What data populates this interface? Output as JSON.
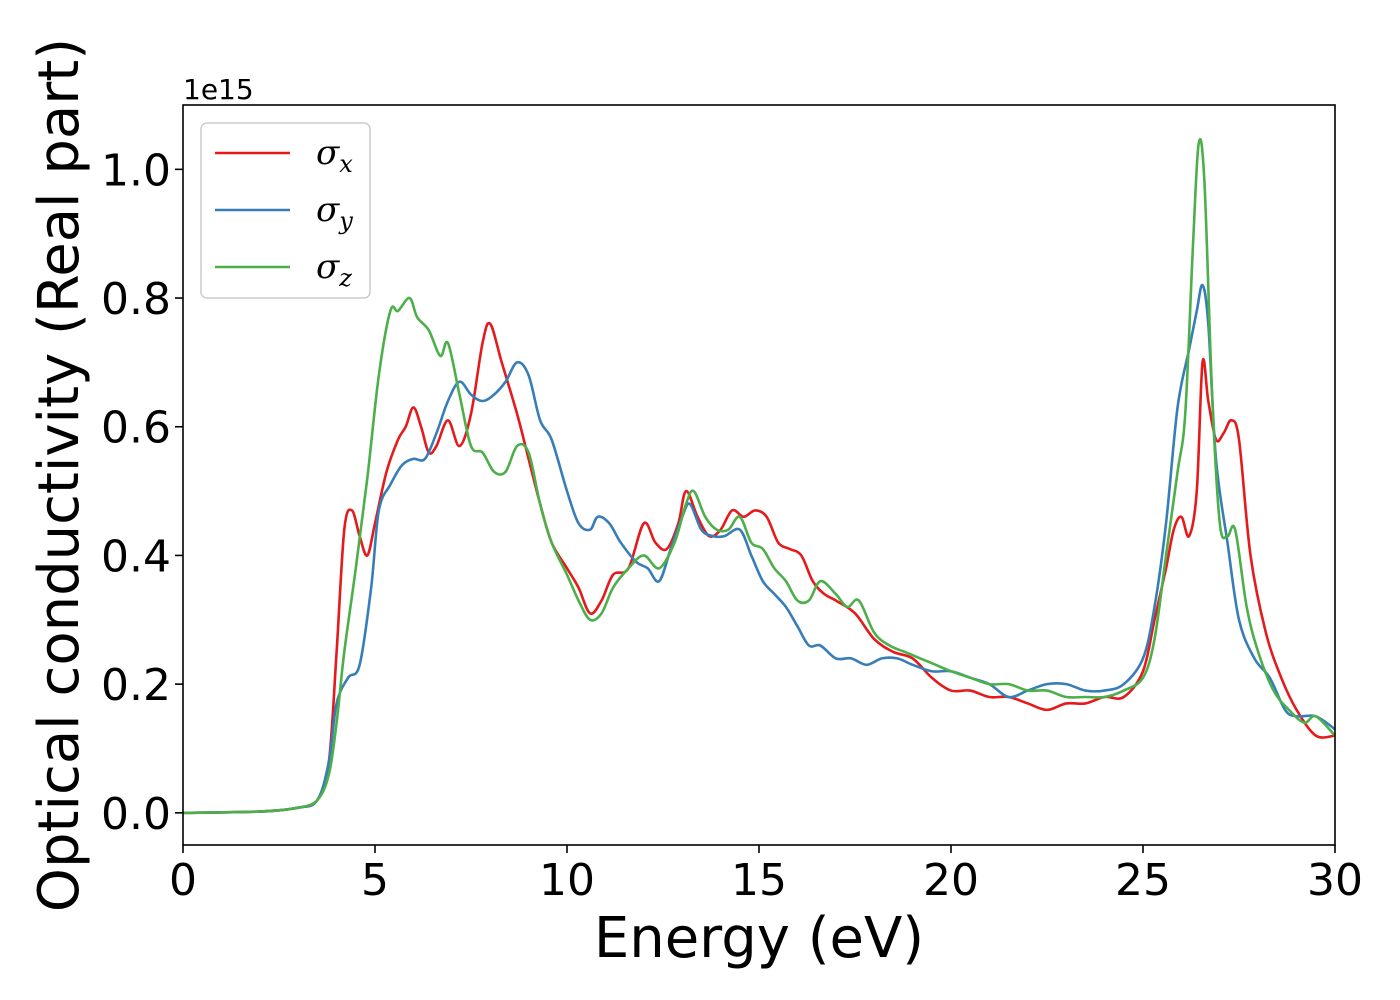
{
  "chart_data": {
    "type": "line",
    "xlabel": "Energy (eV)",
    "ylabel": "Optical conductivity (Real part)",
    "y_offset_label": "1e15",
    "xlim": [
      0,
      30
    ],
    "ylim": [
      -0.05,
      1.1
    ],
    "x_ticks": [
      0,
      5,
      10,
      15,
      20,
      25,
      30
    ],
    "x_tick_labels": [
      "0",
      "5",
      "10",
      "15",
      "20",
      "25",
      "30"
    ],
    "y_ticks": [
      0.0,
      0.2,
      0.4,
      0.6,
      0.8,
      1.0
    ],
    "y_tick_labels": [
      "0.0",
      "0.2",
      "0.4",
      "0.6",
      "0.8",
      "1.0"
    ],
    "grid": false,
    "legend_position": "upper-left",
    "series": [
      {
        "name": "σx",
        "symbol": "σ",
        "subscript": "x",
        "color": "#e41a1c",
        "x": [
          0,
          2,
          3,
          3.5,
          3.8,
          4.0,
          4.2,
          4.4,
          4.6,
          4.8,
          5.0,
          5.3,
          5.6,
          5.8,
          6.0,
          6.2,
          6.4,
          6.6,
          6.9,
          7.2,
          7.5,
          7.8,
          8.0,
          8.3,
          8.7,
          9.0,
          9.3,
          9.6,
          10.0,
          10.3,
          10.6,
          10.9,
          11.2,
          11.6,
          12.0,
          12.3,
          12.6,
          12.9,
          13.1,
          13.4,
          13.7,
          14.0,
          14.3,
          14.6,
          14.9,
          15.2,
          15.5,
          15.8,
          16.1,
          16.4,
          16.7,
          17.0,
          17.5,
          18.0,
          18.5,
          19.0,
          19.5,
          20.0,
          20.5,
          21.0,
          21.5,
          22.0,
          22.5,
          23.0,
          23.5,
          24.0,
          24.5,
          25.0,
          25.3,
          25.6,
          25.8,
          26.0,
          26.2,
          26.4,
          26.55,
          26.7,
          26.9,
          27.1,
          27.3,
          27.5,
          27.8,
          28.2,
          28.6,
          29.0,
          29.5,
          30.0
        ],
        "y": [
          0.0,
          0.002,
          0.008,
          0.02,
          0.08,
          0.25,
          0.44,
          0.47,
          0.43,
          0.4,
          0.45,
          0.53,
          0.58,
          0.6,
          0.63,
          0.6,
          0.56,
          0.57,
          0.61,
          0.57,
          0.62,
          0.73,
          0.76,
          0.7,
          0.62,
          0.55,
          0.48,
          0.42,
          0.38,
          0.35,
          0.31,
          0.33,
          0.37,
          0.38,
          0.45,
          0.42,
          0.41,
          0.45,
          0.5,
          0.46,
          0.43,
          0.44,
          0.47,
          0.46,
          0.47,
          0.46,
          0.42,
          0.41,
          0.4,
          0.36,
          0.34,
          0.33,
          0.31,
          0.27,
          0.25,
          0.24,
          0.21,
          0.19,
          0.19,
          0.18,
          0.18,
          0.17,
          0.16,
          0.17,
          0.17,
          0.18,
          0.18,
          0.22,
          0.3,
          0.38,
          0.44,
          0.46,
          0.43,
          0.5,
          0.7,
          0.64,
          0.58,
          0.59,
          0.61,
          0.58,
          0.4,
          0.28,
          0.21,
          0.16,
          0.12,
          0.12
        ]
      },
      {
        "name": "σy",
        "symbol": "σ",
        "subscript": "y",
        "color": "#377eb8",
        "x": [
          0,
          2,
          3,
          3.5,
          3.8,
          4.0,
          4.3,
          4.6,
          4.9,
          5.1,
          5.4,
          5.7,
          6.0,
          6.3,
          6.6,
          6.9,
          7.2,
          7.5,
          7.8,
          8.1,
          8.4,
          8.7,
          9.0,
          9.3,
          9.6,
          10.0,
          10.3,
          10.6,
          10.8,
          11.1,
          11.4,
          11.8,
          12.1,
          12.4,
          12.7,
          13.0,
          13.2,
          13.5,
          13.8,
          14.1,
          14.5,
          14.8,
          15.1,
          15.4,
          15.7,
          16.0,
          16.3,
          16.6,
          17.0,
          17.4,
          17.8,
          18.2,
          18.6,
          19.0,
          19.5,
          20.0,
          20.5,
          21.0,
          21.5,
          22.0,
          22.5,
          23.0,
          23.5,
          24.0,
          24.5,
          25.0,
          25.3,
          25.6,
          25.9,
          26.2,
          26.4,
          26.55,
          26.7,
          26.9,
          27.2,
          27.5,
          27.9,
          28.3,
          28.7,
          29.0,
          29.5,
          30.0
        ],
        "y": [
          0.0,
          0.002,
          0.008,
          0.02,
          0.08,
          0.17,
          0.21,
          0.23,
          0.35,
          0.47,
          0.51,
          0.54,
          0.55,
          0.55,
          0.59,
          0.64,
          0.67,
          0.65,
          0.64,
          0.65,
          0.67,
          0.7,
          0.68,
          0.61,
          0.58,
          0.5,
          0.45,
          0.44,
          0.46,
          0.45,
          0.42,
          0.39,
          0.38,
          0.36,
          0.41,
          0.46,
          0.48,
          0.44,
          0.43,
          0.43,
          0.44,
          0.4,
          0.36,
          0.34,
          0.32,
          0.29,
          0.26,
          0.26,
          0.24,
          0.24,
          0.23,
          0.24,
          0.24,
          0.23,
          0.22,
          0.22,
          0.21,
          0.2,
          0.18,
          0.19,
          0.2,
          0.2,
          0.19,
          0.19,
          0.2,
          0.24,
          0.32,
          0.45,
          0.63,
          0.72,
          0.78,
          0.82,
          0.76,
          0.55,
          0.42,
          0.3,
          0.24,
          0.21,
          0.16,
          0.15,
          0.15,
          0.13
        ]
      },
      {
        "name": "σz",
        "symbol": "σ",
        "subscript": "z",
        "color": "#4daf4a",
        "x": [
          0,
          2,
          3,
          3.5,
          3.8,
          4.0,
          4.2,
          4.5,
          4.8,
          5.1,
          5.4,
          5.6,
          5.9,
          6.1,
          6.4,
          6.7,
          6.9,
          7.2,
          7.5,
          7.8,
          8.1,
          8.4,
          8.7,
          9.0,
          9.3,
          9.6,
          10.0,
          10.3,
          10.6,
          10.9,
          11.2,
          11.6,
          12.0,
          12.4,
          12.8,
          13.1,
          13.3,
          13.6,
          13.9,
          14.2,
          14.5,
          14.8,
          15.1,
          15.4,
          15.7,
          16.0,
          16.3,
          16.6,
          17.0,
          17.3,
          17.6,
          18.0,
          18.4,
          18.8,
          19.2,
          19.6,
          20.0,
          20.5,
          21.0,
          21.5,
          22.0,
          22.5,
          23.0,
          23.5,
          24.0,
          24.5,
          25.0,
          25.3,
          25.6,
          25.9,
          26.1,
          26.3,
          26.45,
          26.6,
          26.8,
          27.0,
          27.2,
          27.4,
          27.7,
          28.0,
          28.4,
          28.8,
          29.2,
          29.5,
          30.0
        ],
        "y": [
          0.0,
          0.002,
          0.008,
          0.02,
          0.06,
          0.14,
          0.25,
          0.38,
          0.52,
          0.68,
          0.78,
          0.78,
          0.8,
          0.77,
          0.75,
          0.71,
          0.73,
          0.65,
          0.57,
          0.56,
          0.53,
          0.53,
          0.57,
          0.56,
          0.48,
          0.42,
          0.37,
          0.33,
          0.3,
          0.31,
          0.35,
          0.38,
          0.4,
          0.38,
          0.42,
          0.48,
          0.5,
          0.46,
          0.44,
          0.44,
          0.46,
          0.42,
          0.41,
          0.38,
          0.36,
          0.33,
          0.33,
          0.36,
          0.34,
          0.32,
          0.33,
          0.28,
          0.26,
          0.25,
          0.24,
          0.23,
          0.22,
          0.21,
          0.2,
          0.2,
          0.19,
          0.19,
          0.18,
          0.18,
          0.18,
          0.19,
          0.21,
          0.27,
          0.4,
          0.53,
          0.62,
          0.88,
          1.04,
          0.98,
          0.65,
          0.45,
          0.43,
          0.44,
          0.32,
          0.25,
          0.19,
          0.16,
          0.14,
          0.15,
          0.12
        ]
      }
    ]
  }
}
